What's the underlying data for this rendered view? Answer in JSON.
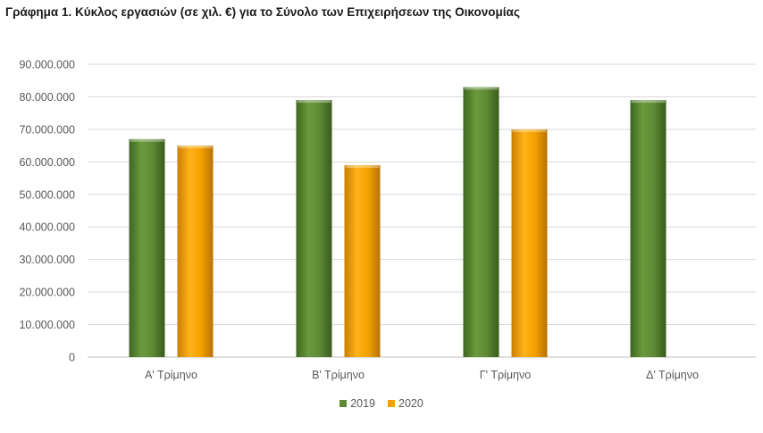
{
  "title": {
    "prefix": "Γράφημα 1",
    "text": ".  Κύκλος εργασιών (σε χιλ. €) για το Σύνολο των Επιχειρήσεων της Οικονομίας"
  },
  "colors": {
    "2019": "#5f8a35",
    "2020": "#f5a200"
  },
  "chart_data": {
    "type": "bar",
    "categories": [
      "Α' Τρίμηνο",
      "Β' Τρίμηνο",
      "Γ' Τρίμηνο",
      "Δ' Τρίμηνο"
    ],
    "series": [
      {
        "name": "2019",
        "values": [
          67000000,
          79000000,
          83000000,
          79000000
        ]
      },
      {
        "name": "2020",
        "values": [
          65000000,
          59000000,
          70000000,
          null
        ]
      }
    ],
    "ylim": [
      0,
      90000000
    ],
    "yticks": [
      0,
      10000000,
      20000000,
      30000000,
      40000000,
      50000000,
      60000000,
      70000000,
      80000000,
      90000000
    ],
    "ytick_labels": [
      "0",
      "10.000.000",
      "20.000.000",
      "30.000.000",
      "40.000.000",
      "50.000.000",
      "60.000.000",
      "70.000.000",
      "80.000.000",
      "90.000.000"
    ],
    "grid": true,
    "legend_position": "bottom"
  }
}
